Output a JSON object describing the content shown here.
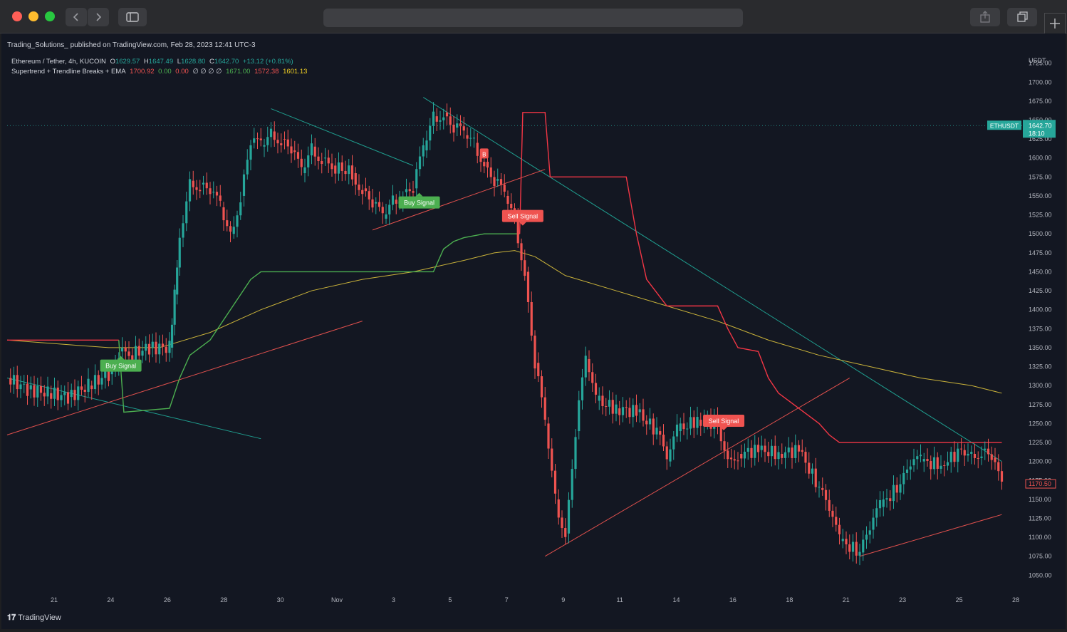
{
  "browser": {
    "back_icon": "chevron-left-icon",
    "forward_icon": "chevron-right-icon",
    "sidebar_icon": "sidebar-icon",
    "share_icon": "share-icon",
    "tabs_icon": "tabs-icon",
    "new_tab_icon": "plus-icon"
  },
  "header": {
    "publisher": "Trading_Solutions_ published on TradingView.com, Feb 28, 2023 12:41 UTC-3"
  },
  "legend": {
    "symbol": "Ethereum / Tether, 4h, KUCOIN",
    "open_label": "O",
    "open": "1629.57",
    "high_label": "H",
    "high": "1647.49",
    "low_label": "L",
    "low": "1628.80",
    "close_label": "C",
    "close": "1642.70",
    "change": "+13.12 (+0.81%)",
    "indicator_name": "Supertrend + Trendline Breaks + EMA",
    "ind_v1": "1700.92",
    "ind_v2": "0.00",
    "ind_v3": "0.00",
    "ind_v4": "∅ ∅ ∅ ∅",
    "ind_v5": "1671.00",
    "ind_v6": "1572.38",
    "ind_v7": "1601.13"
  },
  "axis": {
    "currency": "USDT",
    "price_ticks": [
      "1725.00",
      "1700.00",
      "1675.00",
      "1650.00",
      "1625.00",
      "1600.00",
      "1575.00",
      "1550.00",
      "1525.00",
      "1500.00",
      "1475.00",
      "1450.00",
      "1425.00",
      "1400.00",
      "1375.00",
      "1350.00",
      "1325.00",
      "1300.00",
      "1275.00",
      "1250.00",
      "1225.00",
      "1200.00",
      "1175.00",
      "1150.00",
      "1125.00",
      "1100.00",
      "1075.00",
      "1050.00"
    ],
    "time_ticks": [
      "21",
      "24",
      "26",
      "28",
      "30",
      "Nov",
      "3",
      "5",
      "7",
      "9",
      "11",
      "14",
      "16",
      "18",
      "21",
      "23",
      "25",
      "28"
    ]
  },
  "price_tags": {
    "symbol_tag": "ETHUSDT",
    "last_price": "1642.70",
    "countdown": "18:10",
    "mark_price": "1170.50"
  },
  "signals": {
    "buy1": "Buy Signal",
    "buy2": "Buy Signal",
    "sell1": "Sell Signal",
    "sell2": "Sell Signal",
    "b_marker": "B"
  },
  "footer": {
    "brand": "TradingView",
    "brand_icon": "tradingview-logo-icon"
  },
  "colors": {
    "background": "#131722",
    "up": "#26a69a",
    "down": "#ef5350",
    "supertrend_up": "#4caf50",
    "supertrend_down": "#f23645",
    "ema": "#c9b23a",
    "trendline_teal": "#1f9e8f",
    "trendline_red": "#e0504d"
  },
  "chart_data": {
    "type": "line",
    "title": "Ethereum / Tether, 4h, KUCOIN",
    "ylabel": "USDT",
    "ylim": [
      1040,
      1735
    ],
    "grid": false,
    "x_range": [
      0,
      100
    ],
    "candles_approx": [
      [
        0,
        1310
      ],
      [
        2,
        1295
      ],
      [
        4,
        1290
      ],
      [
        6,
        1285
      ],
      [
        8,
        1300
      ],
      [
        10,
        1315
      ],
      [
        11,
        1345
      ],
      [
        12,
        1340
      ],
      [
        14,
        1350
      ],
      [
        16,
        1350
      ],
      [
        16.5,
        1420
      ],
      [
        17,
        1495
      ],
      [
        18,
        1570
      ],
      [
        19,
        1565
      ],
      [
        20,
        1555
      ],
      [
        21,
        1535
      ],
      [
        22,
        1500
      ],
      [
        23,
        1550
      ],
      [
        24,
        1620
      ],
      [
        25,
        1615
      ],
      [
        26,
        1635
      ],
      [
        27,
        1625
      ],
      [
        28,
        1610
      ],
      [
        29,
        1580
      ],
      [
        30,
        1615
      ],
      [
        31,
        1600
      ],
      [
        32,
        1590
      ],
      [
        34,
        1580
      ],
      [
        35,
        1560
      ],
      [
        36,
        1540
      ],
      [
        37,
        1520
      ],
      [
        38,
        1545
      ],
      [
        39,
        1555
      ],
      [
        40,
        1560
      ],
      [
        41,
        1610
      ],
      [
        42,
        1655
      ],
      [
        43,
        1660
      ],
      [
        44,
        1640
      ],
      [
        45,
        1630
      ],
      [
        46,
        1620
      ],
      [
        47,
        1595
      ],
      [
        48,
        1570
      ],
      [
        49,
        1550
      ],
      [
        50,
        1520
      ],
      [
        51,
        1450
      ],
      [
        52,
        1330
      ],
      [
        53,
        1250
      ],
      [
        54,
        1150
      ],
      [
        55,
        1105
      ],
      [
        56,
        1240
      ],
      [
        57,
        1335
      ],
      [
        58,
        1280
      ],
      [
        60,
        1270
      ],
      [
        62,
        1265
      ],
      [
        64,
        1240
      ],
      [
        65,
        1200
      ],
      [
        66,
        1240
      ],
      [
        68,
        1255
      ],
      [
        70,
        1250
      ],
      [
        71,
        1205
      ],
      [
        72,
        1210
      ],
      [
        74,
        1215
      ],
      [
        76,
        1210
      ],
      [
        78,
        1215
      ],
      [
        80,
        1165
      ],
      [
        81,
        1135
      ],
      [
        82,
        1095
      ],
      [
        84,
        1080
      ],
      [
        85,
        1110
      ],
      [
        86,
        1140
      ],
      [
        88,
        1170
      ],
      [
        89,
        1195
      ],
      [
        90,
        1200
      ],
      [
        92,
        1195
      ],
      [
        94,
        1215
      ],
      [
        95,
        1210
      ],
      [
        96,
        1215
      ],
      [
        97,
        1205
      ],
      [
        98,
        1165
      ]
    ],
    "series": [
      {
        "name": "Supertrend",
        "x": [
          0,
          11,
          11.5,
          16,
          17,
          18,
          19,
          20,
          24,
          25,
          26,
          27,
          42,
          43,
          44,
          45,
          47,
          49,
          50,
          50.5,
          50.8,
          53,
          53.5,
          61,
          62,
          63,
          65,
          66,
          70,
          71,
          72,
          74,
          75,
          76,
          78,
          80,
          81,
          82,
          83,
          85,
          98
        ],
        "values": [
          1360,
          1360,
          1265,
          1270,
          1310,
          1340,
          1350,
          1360,
          1440,
          1450,
          1450,
          1450,
          1450,
          1480,
          1490,
          1495,
          1500,
          1500,
          1500,
          1500,
          1660,
          1660,
          1575,
          1575,
          1500,
          1440,
          1405,
          1405,
          1405,
          1375,
          1350,
          1345,
          1310,
          1290,
          1270,
          1250,
          1235,
          1225,
          1225,
          1225,
          1225
        ]
      },
      {
        "name": "EMA",
        "x": [
          0,
          5,
          10,
          15,
          20,
          25,
          30,
          35,
          40,
          45,
          48,
          50,
          52,
          55,
          60,
          65,
          70,
          75,
          80,
          85,
          90,
          95,
          98
        ],
        "values": [
          1360,
          1355,
          1350,
          1350,
          1370,
          1400,
          1425,
          1440,
          1450,
          1465,
          1475,
          1478,
          1470,
          1445,
          1425,
          1405,
          1385,
          1360,
          1340,
          1325,
          1310,
          1300,
          1290
        ]
      }
    ],
    "trendlines": [
      {
        "color": "teal",
        "from": [
          0,
          1310
        ],
        "to": [
          25,
          1230
        ]
      },
      {
        "color": "teal",
        "from": [
          26,
          1665
        ],
        "to": [
          40,
          1590
        ]
      },
      {
        "color": "teal",
        "from": [
          41,
          1680
        ],
        "to": [
          98,
          1200
        ]
      },
      {
        "color": "red",
        "from": [
          0,
          1235
        ],
        "to": [
          35,
          1385
        ]
      },
      {
        "color": "red",
        "from": [
          36,
          1505
        ],
        "to": [
          53,
          1585
        ]
      },
      {
        "color": "red",
        "from": [
          53,
          1075
        ],
        "to": [
          83,
          1310
        ]
      },
      {
        "color": "red",
        "from": [
          84,
          1075
        ],
        "to": [
          98,
          1130
        ]
      }
    ]
  }
}
